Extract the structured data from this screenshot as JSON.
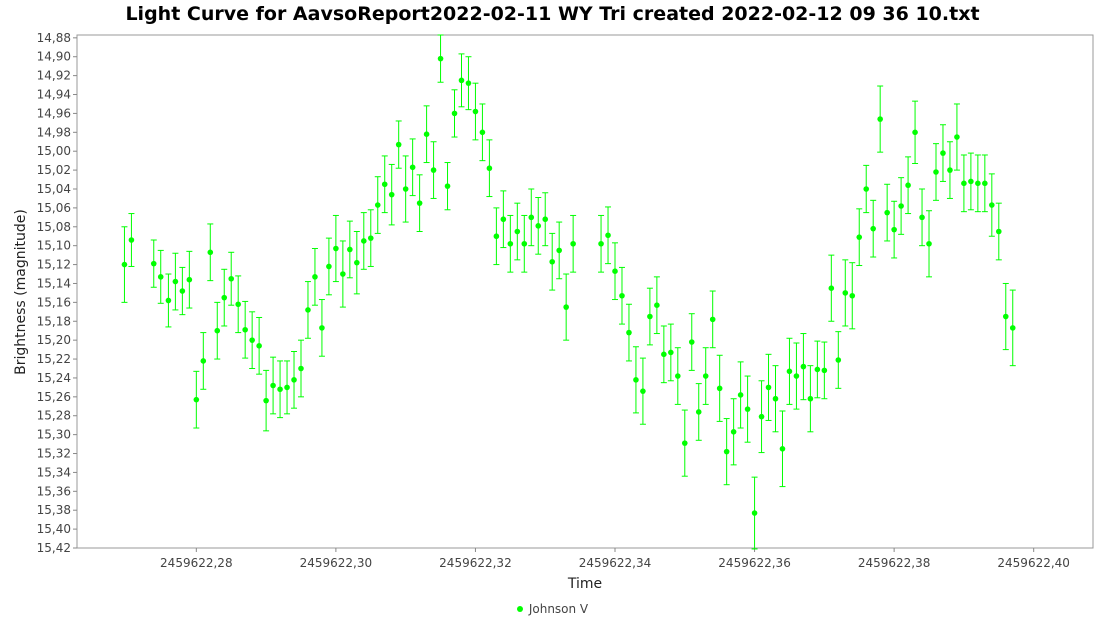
{
  "chart_data": {
    "type": "scatter",
    "title": "Light Curve for AavsoReport2022-02-11 WY Tri created 2022-02-12 09 36 10.txt",
    "xlabel": "Time",
    "ylabel": "Brightness (magnitude)",
    "xlim": [
      2459622.2629,
      2459622.4085
    ],
    "ylim": [
      15.42,
      14.877
    ],
    "y_inverted": true,
    "x_ticks": [
      "2459622,28",
      "2459622,30",
      "2459622,32",
      "2459622,34",
      "2459622,36",
      "2459622,38",
      "2459622,40"
    ],
    "y_ticks": [
      "14,88",
      "14,90",
      "14,92",
      "14,94",
      "14,96",
      "14,98",
      "15,00",
      "15,02",
      "15,04",
      "15,06",
      "15,08",
      "15,10",
      "15,12",
      "15,14",
      "15,16",
      "15,18",
      "15,20",
      "15,22",
      "15,24",
      "15,26",
      "15,28",
      "15,30",
      "15,32",
      "15,34",
      "15,36",
      "15,38",
      "15,40",
      "15,42"
    ],
    "grid": true,
    "legend_position": "bottom",
    "series": [
      {
        "name": "Johnson V",
        "color": "#00ff00",
        "points": [
          [
            2459622.2697,
            15.12,
            0.04
          ],
          [
            2459622.2707,
            15.094,
            0.028
          ],
          [
            2459622.2739,
            15.119,
            0.025
          ],
          [
            2459622.2749,
            15.133,
            0.028
          ],
          [
            2459622.276,
            15.158,
            0.028
          ],
          [
            2459622.277,
            15.138,
            0.03
          ],
          [
            2459622.278,
            15.148,
            0.025
          ],
          [
            2459622.279,
            15.136,
            0.03
          ],
          [
            2459622.28,
            15.263,
            0.03
          ],
          [
            2459622.281,
            15.222,
            0.03
          ],
          [
            2459622.282,
            15.107,
            0.03
          ],
          [
            2459622.283,
            15.19,
            0.03
          ],
          [
            2459622.284,
            15.155,
            0.03
          ],
          [
            2459622.285,
            15.135,
            0.028
          ],
          [
            2459622.286,
            15.162,
            0.03
          ],
          [
            2459622.287,
            15.189,
            0.03
          ],
          [
            2459622.288,
            15.2,
            0.03
          ],
          [
            2459622.289,
            15.206,
            0.03
          ],
          [
            2459622.29,
            15.264,
            0.032
          ],
          [
            2459622.291,
            15.248,
            0.03
          ],
          [
            2459622.292,
            15.252,
            0.03
          ],
          [
            2459622.293,
            15.25,
            0.028
          ],
          [
            2459622.294,
            15.242,
            0.03
          ],
          [
            2459622.295,
            15.23,
            0.03
          ],
          [
            2459622.296,
            15.168,
            0.03
          ],
          [
            2459622.297,
            15.133,
            0.03
          ],
          [
            2459622.298,
            15.187,
            0.03
          ],
          [
            2459622.299,
            15.122,
            0.03
          ],
          [
            2459622.3,
            15.103,
            0.035
          ],
          [
            2459622.301,
            15.13,
            0.035
          ],
          [
            2459622.302,
            15.104,
            0.03
          ],
          [
            2459622.303,
            15.118,
            0.033
          ],
          [
            2459622.304,
            15.095,
            0.03
          ],
          [
            2459622.305,
            15.092,
            0.03
          ],
          [
            2459622.306,
            15.057,
            0.03
          ],
          [
            2459622.307,
            15.035,
            0.03
          ],
          [
            2459622.308,
            15.046,
            0.032
          ],
          [
            2459622.309,
            14.993,
            0.025
          ],
          [
            2459622.31,
            15.04,
            0.035
          ],
          [
            2459622.311,
            15.017,
            0.03
          ],
          [
            2459622.312,
            15.055,
            0.03
          ],
          [
            2459622.313,
            14.982,
            0.03
          ],
          [
            2459622.314,
            15.02,
            0.03
          ],
          [
            2459622.315,
            14.902,
            0.025
          ],
          [
            2459622.316,
            15.037,
            0.025
          ],
          [
            2459622.317,
            14.96,
            0.025
          ],
          [
            2459622.318,
            14.925,
            0.028
          ],
          [
            2459622.319,
            14.928,
            0.028
          ],
          [
            2459622.32,
            14.958,
            0.03
          ],
          [
            2459622.321,
            14.98,
            0.03
          ],
          [
            2459622.322,
            15.018,
            0.03
          ],
          [
            2459622.323,
            15.09,
            0.03
          ],
          [
            2459622.324,
            15.072,
            0.03
          ],
          [
            2459622.325,
            15.098,
            0.03
          ],
          [
            2459622.326,
            15.085,
            0.03
          ],
          [
            2459622.327,
            15.098,
            0.03
          ],
          [
            2459622.328,
            15.07,
            0.03
          ],
          [
            2459622.329,
            15.079,
            0.03
          ],
          [
            2459622.33,
            15.072,
            0.028
          ],
          [
            2459622.331,
            15.117,
            0.03
          ],
          [
            2459622.332,
            15.105,
            0.03
          ],
          [
            2459622.333,
            15.165,
            0.035
          ],
          [
            2459622.334,
            15.098,
            0.03
          ],
          [
            2459622.338,
            15.098,
            0.03
          ],
          [
            2459622.339,
            15.089,
            0.03
          ],
          [
            2459622.34,
            15.127,
            0.03
          ],
          [
            2459622.341,
            15.153,
            0.03
          ],
          [
            2459622.342,
            15.192,
            0.03
          ],
          [
            2459622.343,
            15.242,
            0.035
          ],
          [
            2459622.344,
            15.254,
            0.035
          ],
          [
            2459622.345,
            15.175,
            0.03
          ],
          [
            2459622.346,
            15.163,
            0.03
          ],
          [
            2459622.347,
            15.215,
            0.03
          ],
          [
            2459622.348,
            15.213,
            0.03
          ],
          [
            2459622.349,
            15.238,
            0.03
          ],
          [
            2459622.35,
            15.309,
            0.035
          ],
          [
            2459622.351,
            15.202,
            0.03
          ],
          [
            2459622.352,
            15.276,
            0.03
          ],
          [
            2459622.353,
            15.238,
            0.03
          ],
          [
            2459622.354,
            15.178,
            0.03
          ],
          [
            2459622.355,
            15.251,
            0.035
          ],
          [
            2459622.356,
            15.318,
            0.035
          ],
          [
            2459622.357,
            15.297,
            0.035
          ],
          [
            2459622.358,
            15.258,
            0.035
          ],
          [
            2459622.359,
            15.273,
            0.035
          ],
          [
            2459622.36,
            15.383,
            0.038
          ],
          [
            2459622.361,
            15.281,
            0.038
          ],
          [
            2459622.362,
            15.25,
            0.035
          ],
          [
            2459622.363,
            15.262,
            0.035
          ],
          [
            2459622.364,
            15.315,
            0.04
          ],
          [
            2459622.365,
            15.233,
            0.035
          ],
          [
            2459622.366,
            15.238,
            0.035
          ],
          [
            2459622.367,
            15.228,
            0.035
          ],
          [
            2459622.368,
            15.262,
            0.035
          ],
          [
            2459622.369,
            15.231,
            0.03
          ],
          [
            2459622.37,
            15.232,
            0.03
          ],
          [
            2459622.371,
            15.145,
            0.035
          ],
          [
            2459622.372,
            15.221,
            0.03
          ],
          [
            2459622.373,
            15.15,
            0.035
          ],
          [
            2459622.374,
            15.153,
            0.035
          ],
          [
            2459622.375,
            15.091,
            0.03
          ],
          [
            2459622.376,
            15.04,
            0.025
          ],
          [
            2459622.377,
            15.082,
            0.03
          ],
          [
            2459622.378,
            14.966,
            0.035
          ],
          [
            2459622.379,
            15.065,
            0.03
          ],
          [
            2459622.38,
            15.083,
            0.03
          ],
          [
            2459622.381,
            15.058,
            0.03
          ],
          [
            2459622.382,
            15.036,
            0.03
          ],
          [
            2459622.383,
            14.98,
            0.033
          ],
          [
            2459622.384,
            15.07,
            0.03
          ],
          [
            2459622.385,
            15.098,
            0.035
          ],
          [
            2459622.386,
            15.022,
            0.03
          ],
          [
            2459622.387,
            15.002,
            0.03
          ],
          [
            2459622.388,
            15.02,
            0.03
          ],
          [
            2459622.389,
            14.985,
            0.035
          ],
          [
            2459622.39,
            15.034,
            0.03
          ],
          [
            2459622.391,
            15.032,
            0.03
          ],
          [
            2459622.392,
            15.034,
            0.03
          ],
          [
            2459622.393,
            15.034,
            0.03
          ],
          [
            2459622.394,
            15.057,
            0.033
          ],
          [
            2459622.395,
            15.085,
            0.03
          ],
          [
            2459622.396,
            15.175,
            0.035
          ],
          [
            2459622.397,
            15.187,
            0.04
          ]
        ]
      }
    ]
  }
}
